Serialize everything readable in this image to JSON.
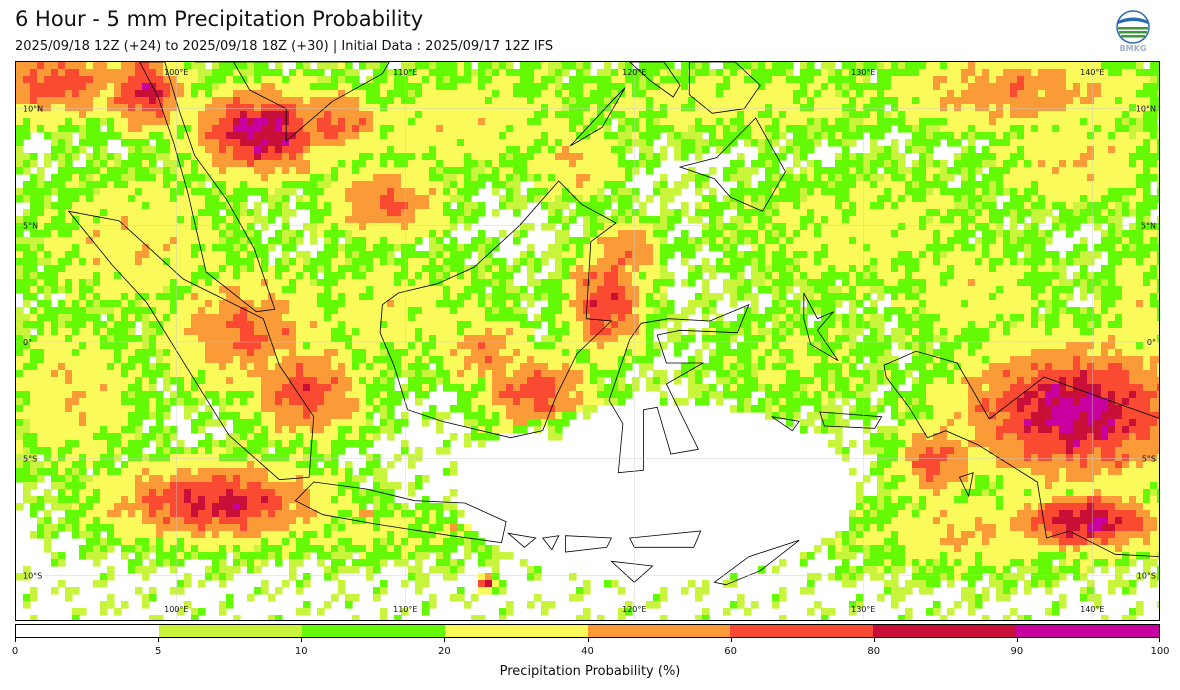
{
  "header": {
    "title": "6 Hour - 5 mm Precipitation Probability",
    "subtitle": "2025/09/18 12Z (+24) to 2025/09/18 18Z (+30) | Initial Data : 2025/09/17 12Z IFS",
    "logo_text": "BMKG"
  },
  "map": {
    "lon_range": [
      93,
      143
    ],
    "lat_range": [
      -12,
      12
    ],
    "lon_labels": [
      "100°E",
      "110°E",
      "120°E",
      "130°E",
      "140°E"
    ],
    "lat_labels": [
      "10°N",
      "5°N",
      "0°",
      "5°S",
      "10°S"
    ],
    "lon_values": [
      100,
      110,
      120,
      130,
      140
    ],
    "lat_values": [
      10,
      5,
      0,
      -5,
      -10
    ]
  },
  "legend": {
    "label": "Precipitation Probability (%)",
    "bounds": [
      0,
      5,
      10,
      20,
      40,
      60,
      80,
      90,
      100
    ],
    "tick_labels": [
      "0",
      "5",
      "10",
      "20",
      "40",
      "60",
      "80",
      "90",
      "100"
    ],
    "colors": [
      "#ffffff",
      "#c8f53c",
      "#64fa05",
      "#fafa5a",
      "#fa9b37",
      "#fa4b32",
      "#c80f37",
      "#c800a0"
    ]
  }
}
